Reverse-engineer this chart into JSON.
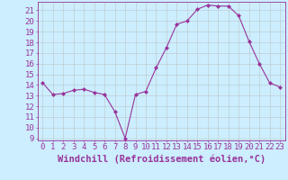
{
  "x": [
    0,
    1,
    2,
    3,
    4,
    5,
    6,
    7,
    8,
    9,
    10,
    11,
    12,
    13,
    14,
    15,
    16,
    17,
    18,
    19,
    20,
    21,
    22,
    23
  ],
  "y": [
    14.2,
    13.1,
    13.2,
    13.5,
    13.6,
    13.3,
    13.1,
    11.5,
    9.0,
    13.1,
    13.4,
    15.6,
    17.5,
    19.7,
    20.0,
    21.1,
    21.5,
    21.4,
    21.4,
    20.5,
    18.1,
    16.0,
    14.2,
    13.8
  ],
  "line_color": "#993399",
  "marker": "D",
  "marker_size": 2.0,
  "bg_color": "#cceeff",
  "grid_color": "#bbbbbb",
  "xlabel": "Windchill (Refroidissement éolien,°C)",
  "xlabel_color": "#993399",
  "xlabel_fontsize": 7.5,
  "tick_color": "#993399",
  "tick_fontsize": 6.5,
  "ylim": [
    8.8,
    21.8
  ],
  "yticks": [
    9,
    10,
    11,
    12,
    13,
    14,
    15,
    16,
    17,
    18,
    19,
    20,
    21
  ],
  "xticks": [
    0,
    1,
    2,
    3,
    4,
    5,
    6,
    7,
    8,
    9,
    10,
    11,
    12,
    13,
    14,
    15,
    16,
    17,
    18,
    19,
    20,
    21,
    22,
    23
  ],
  "xtick_labels": [
    "0",
    "1",
    "2",
    "3",
    "4",
    "5",
    "6",
    "7",
    "8",
    "9",
    "10",
    "11",
    "12",
    "13",
    "14",
    "15",
    "16",
    "17",
    "18",
    "19",
    "20",
    "21",
    "22",
    "23"
  ],
  "xlim": [
    -0.5,
    23.5
  ]
}
